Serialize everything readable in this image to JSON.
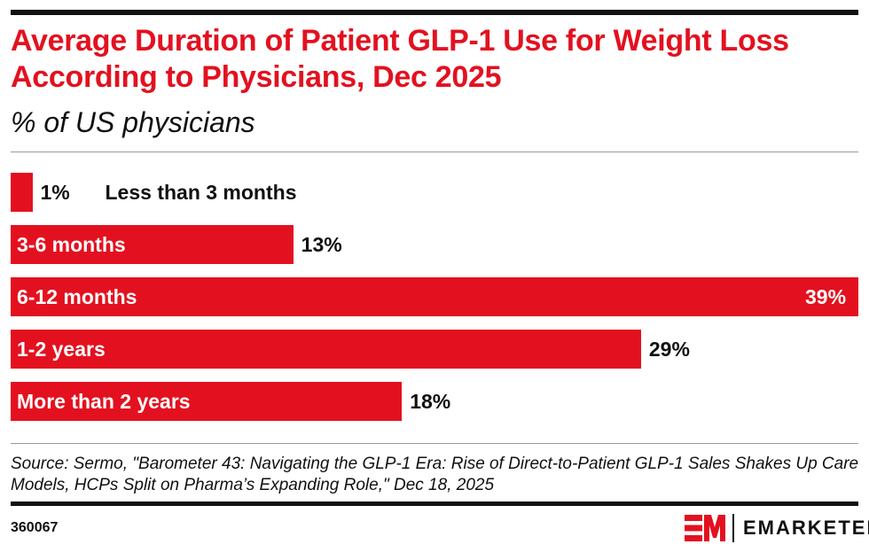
{
  "title": "Average Duration of Patient GLP-1 Use for Weight Loss According to Physicians, Dec 2025",
  "subtitle": "% of US physicians",
  "chart_data": {
    "type": "bar",
    "orientation": "horizontal",
    "title": "Average Duration of Patient GLP-1 Use for Weight Loss According to Physicians, Dec 2025",
    "subtitle": "% of US physicians",
    "categories": [
      "Less than 3 months",
      "3-6 months",
      "6-12 months",
      "1-2 years",
      "More than 2 years"
    ],
    "values": [
      1,
      13,
      39,
      29,
      18
    ],
    "value_labels": [
      "1%",
      "13%",
      "39%",
      "29%",
      "18%"
    ],
    "unit": "%",
    "grid": false,
    "legend": "none",
    "bar_color": "#e3111f"
  },
  "source": "Source: Sermo, \"Barometer 43: Navigating the GLP-1 Era: Rise of Direct-to-Patient GLP-1 Sales Shakes Up Care Models, HCPs Split on Pharma’s Expanding Role,\" Dec 18, 2025",
  "chart_id": "360067",
  "brand": {
    "logo_mark": "EM",
    "name": "EMARKETER",
    "color": "#e3111f"
  }
}
